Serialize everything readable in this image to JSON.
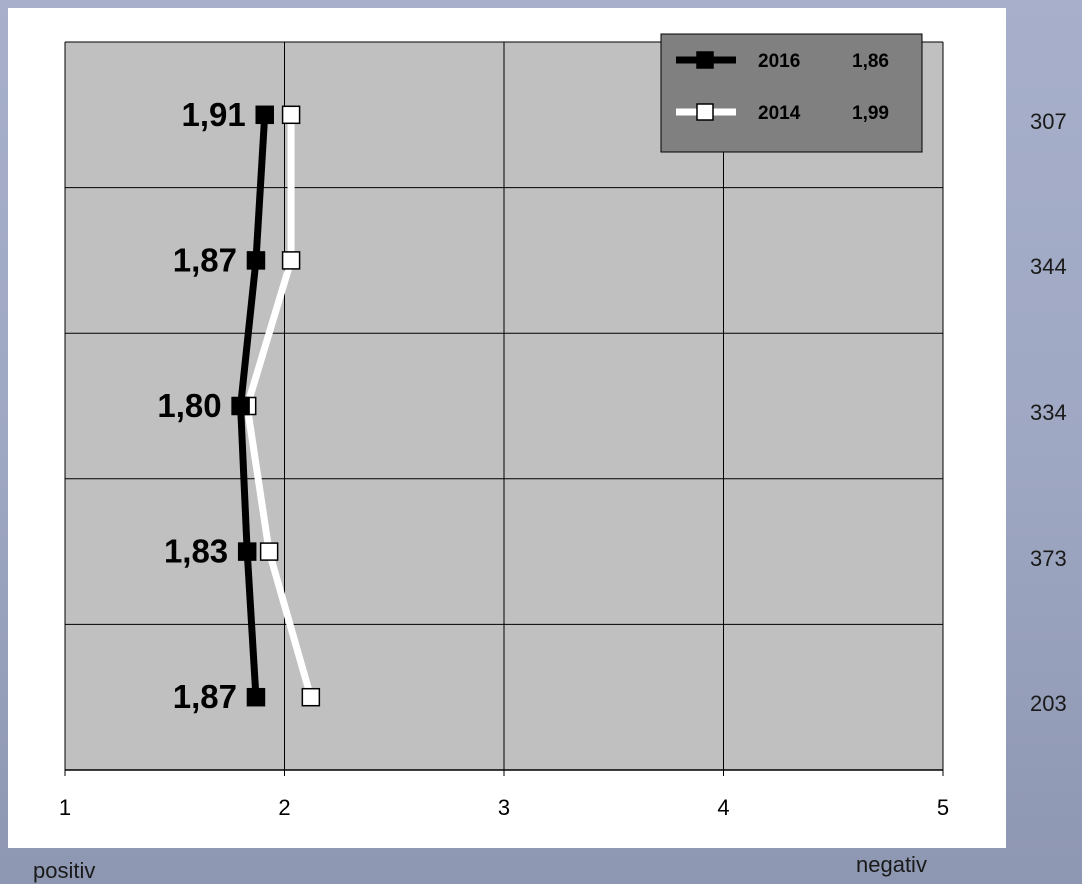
{
  "chart_data": {
    "type": "line",
    "orientation": "horizontal-profile",
    "x_ticks": [
      "1",
      "2",
      "3",
      "4",
      "5"
    ],
    "xlim": [
      1,
      5
    ],
    "rows": 5,
    "counts": [
      "307",
      "344",
      "334",
      "373",
      "203"
    ],
    "endpoints": {
      "left": "positiv",
      "right": "negativ"
    },
    "legend_position": "top-right",
    "series": [
      {
        "name": "2016",
        "mean_label": "1,86",
        "values": [
          1.91,
          1.87,
          1.8,
          1.83,
          1.87
        ],
        "value_labels": [
          "1,91",
          "1,87",
          "1,80",
          "1,83",
          "1,87"
        ],
        "color": "#000000",
        "marker_fill": "#000000"
      },
      {
        "name": "2014",
        "mean_label": "1,99",
        "values": [
          2.03,
          2.03,
          1.83,
          1.93,
          2.12
        ],
        "color": "#ffffff",
        "marker_fill": "#ffffff"
      }
    ],
    "colors": {
      "plot_bg": "#c0c0c0",
      "legend_bg": "#808080",
      "panel_bg": "#ffffff"
    }
  }
}
